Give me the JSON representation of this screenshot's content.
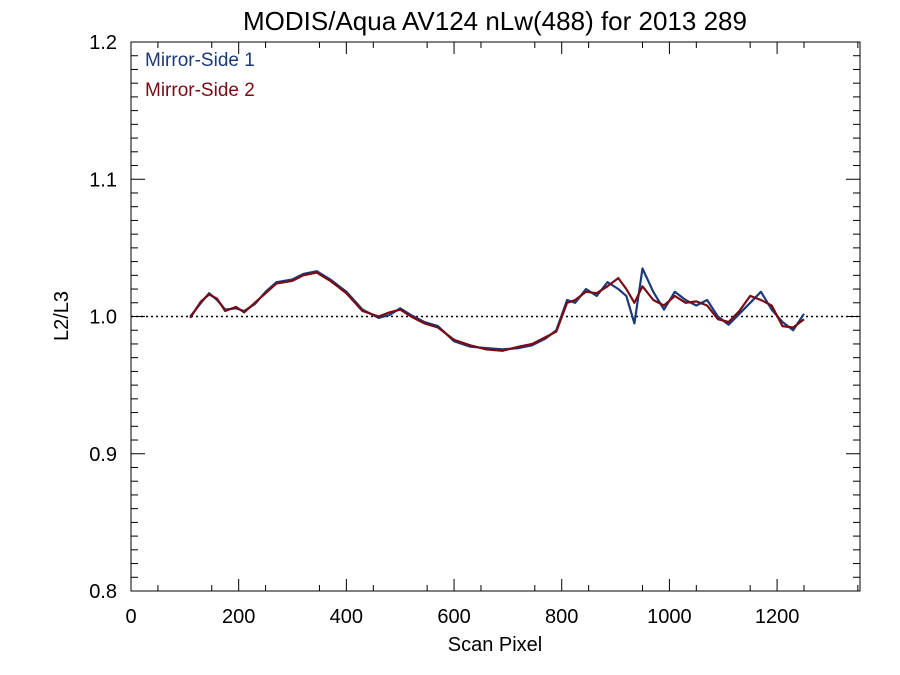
{
  "chart_data": {
    "type": "line",
    "title": "MODIS/Aqua AV124 nLw(488) for 2013 289",
    "xlabel": "Scan Pixel",
    "ylabel": "L2/L3",
    "xlim": [
      0,
      1354
    ],
    "ylim": [
      0.8,
      1.2
    ],
    "xticks": [
      0,
      200,
      400,
      600,
      800,
      1000,
      1200
    ],
    "xtick_labels": [
      "0",
      "200",
      "400",
      "600",
      "800",
      "1000",
      "1200"
    ],
    "yticks": [
      0.8,
      0.9,
      1.0,
      1.1,
      1.2
    ],
    "ytick_labels": [
      "0.8",
      "0.9",
      "1.0",
      "1.1",
      "1.2"
    ],
    "reference_line": 1.0,
    "legend_position": "top-left",
    "colors": {
      "ms1": "#1a3a7a",
      "ms2": "#7a0a14",
      "reference": "#000000"
    },
    "series": [
      {
        "name": "Mirror-Side 1",
        "color": "#1a3a7a",
        "x": [
          110,
          130,
          145,
          160,
          175,
          195,
          210,
          230,
          250,
          270,
          300,
          320,
          345,
          370,
          400,
          430,
          460,
          480,
          500,
          520,
          545,
          570,
          600,
          630,
          660,
          690,
          720,
          745,
          770,
          790,
          810,
          825,
          845,
          865,
          885,
          905,
          920,
          935,
          950,
          970,
          990,
          1010,
          1030,
          1050,
          1070,
          1090,
          1110,
          1130,
          1150,
          1170,
          1190,
          1210,
          1230,
          1250
        ],
        "y": [
          1.0,
          1.01,
          1.017,
          1.012,
          1.005,
          1.006,
          1.004,
          1.009,
          1.018,
          1.025,
          1.027,
          1.031,
          1.033,
          1.027,
          1.018,
          1.005,
          0.999,
          1.001,
          1.006,
          1.001,
          0.996,
          0.993,
          0.982,
          0.978,
          0.977,
          0.976,
          0.977,
          0.979,
          0.984,
          0.99,
          1.012,
          1.01,
          1.02,
          1.015,
          1.025,
          1.02,
          1.015,
          0.995,
          1.035,
          1.018,
          1.005,
          1.018,
          1.012,
          1.008,
          1.012,
          1.0,
          0.994,
          1.002,
          1.01,
          1.018,
          1.005,
          0.996,
          0.99,
          1.002
        ]
      },
      {
        "name": "Mirror-Side 2",
        "color": "#7a0a14",
        "x": [
          110,
          130,
          145,
          160,
          175,
          195,
          210,
          230,
          250,
          270,
          300,
          320,
          345,
          370,
          400,
          430,
          460,
          480,
          500,
          520,
          545,
          570,
          600,
          630,
          660,
          690,
          720,
          745,
          770,
          790,
          810,
          825,
          845,
          865,
          885,
          905,
          920,
          935,
          950,
          970,
          990,
          1010,
          1030,
          1050,
          1070,
          1090,
          1110,
          1130,
          1150,
          1170,
          1190,
          1210,
          1230,
          1250
        ],
        "y": [
          0.999,
          1.011,
          1.016,
          1.013,
          1.004,
          1.007,
          1.003,
          1.01,
          1.017,
          1.024,
          1.026,
          1.03,
          1.032,
          1.026,
          1.017,
          1.004,
          1.0,
          1.003,
          1.005,
          1.0,
          0.995,
          0.992,
          0.983,
          0.979,
          0.976,
          0.975,
          0.978,
          0.98,
          0.985,
          0.989,
          1.01,
          1.012,
          1.018,
          1.017,
          1.022,
          1.028,
          1.02,
          1.01,
          1.022,
          1.012,
          1.008,
          1.015,
          1.01,
          1.011,
          1.008,
          0.998,
          0.996,
          1.004,
          1.015,
          1.012,
          1.008,
          0.993,
          0.992,
          0.998
        ]
      }
    ]
  }
}
